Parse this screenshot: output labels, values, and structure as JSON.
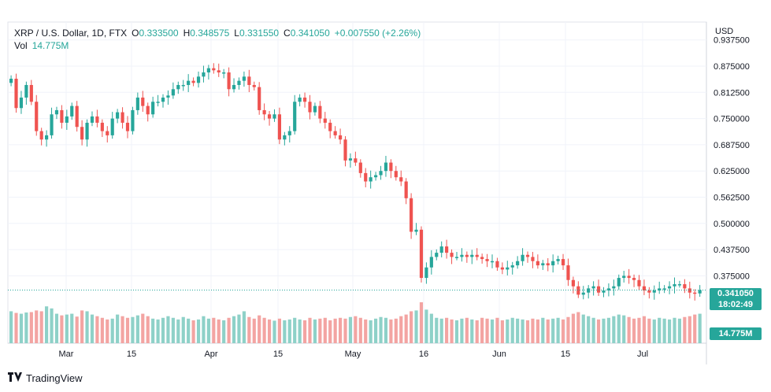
{
  "legend": {
    "symbol": "XRP / U.S. Dollar, 1D, FTX",
    "open_label": "O",
    "open": "0.333500",
    "high_label": "H",
    "high": "0.348575",
    "low_label": "L",
    "low": "0.331550",
    "close_label": "C",
    "close": "0.341050",
    "change": "+0.007550 (+2.26%)",
    "vol_label": "Vol",
    "vol": "14.775M"
  },
  "price_axis": {
    "currency": "USD",
    "ticks": [
      "0.937500",
      "0.875000",
      "0.812500",
      "0.750000",
      "0.687500",
      "0.625000",
      "0.562500",
      "0.500000",
      "0.437500",
      "0.375000"
    ],
    "last_price": "0.341050",
    "countdown": "18:02:49",
    "volume_tag": "14.775M"
  },
  "time_axis": {
    "labels": [
      "Mar",
      "15",
      "Apr",
      "15",
      "May",
      "16",
      "Jun",
      "15",
      "Jul"
    ]
  },
  "brand": {
    "name": "TradingView"
  },
  "colors": {
    "up": "#26a69a",
    "down": "#ef5350",
    "up_vol": "#8ed1c8",
    "down_vol": "#f3a4a2",
    "grid": "#f0f3fa"
  },
  "chart_data": {
    "type": "candlestick",
    "title": "XRP / U.S. Dollar, 1D, FTX",
    "ylabel": "USD",
    "ylim": [
      0.32,
      0.94
    ],
    "grid": true,
    "x_labels": [
      "Mar",
      "15",
      "Apr",
      "15",
      "May",
      "16",
      "Jun",
      "15",
      "Jul"
    ],
    "closes": [
      0.845,
      0.775,
      0.8,
      0.83,
      0.79,
      0.72,
      0.7,
      0.71,
      0.76,
      0.77,
      0.74,
      0.755,
      0.78,
      0.73,
      0.7,
      0.74,
      0.755,
      0.74,
      0.72,
      0.71,
      0.75,
      0.765,
      0.74,
      0.72,
      0.77,
      0.8,
      0.78,
      0.76,
      0.79,
      0.79,
      0.8,
      0.805,
      0.82,
      0.83,
      0.83,
      0.84,
      0.835,
      0.85,
      0.86,
      0.87,
      0.865,
      0.86,
      0.86,
      0.82,
      0.83,
      0.84,
      0.85,
      0.83,
      0.825,
      0.77,
      0.76,
      0.75,
      0.76,
      0.7,
      0.71,
      0.72,
      0.79,
      0.8,
      0.79,
      0.765,
      0.78,
      0.75,
      0.74,
      0.72,
      0.71,
      0.7,
      0.65,
      0.655,
      0.645,
      0.62,
      0.6,
      0.61,
      0.615,
      0.625,
      0.645,
      0.625,
      0.61,
      0.6,
      0.56,
      0.48,
      0.485,
      0.37,
      0.395,
      0.42,
      0.43,
      0.445,
      0.43,
      0.42,
      0.42,
      0.425,
      0.42,
      0.425,
      0.42,
      0.415,
      0.41,
      0.41,
      0.395,
      0.39,
      0.395,
      0.4,
      0.41,
      0.425,
      0.42,
      0.41,
      0.4,
      0.405,
      0.4,
      0.41,
      0.415,
      0.4,
      0.365,
      0.35,
      0.33,
      0.335,
      0.345,
      0.35,
      0.335,
      0.34,
      0.345,
      0.35,
      0.37,
      0.375,
      0.37,
      0.365,
      0.35,
      0.34,
      0.335,
      0.34,
      0.345,
      0.345,
      0.35,
      0.355,
      0.355,
      0.345,
      0.335,
      0.333,
      0.341
    ],
    "volumes": [
      0.78,
      0.74,
      0.72,
      0.75,
      0.76,
      0.8,
      0.78,
      0.9,
      0.85,
      0.72,
      0.68,
      0.7,
      0.72,
      0.65,
      0.8,
      0.78,
      0.7,
      0.66,
      0.62,
      0.58,
      0.6,
      0.7,
      0.66,
      0.62,
      0.64,
      0.68,
      0.72,
      0.66,
      0.6,
      0.58,
      0.62,
      0.66,
      0.62,
      0.58,
      0.64,
      0.6,
      0.56,
      0.58,
      0.66,
      0.6,
      0.62,
      0.58,
      0.56,
      0.62,
      0.66,
      0.7,
      0.78,
      0.64,
      0.6,
      0.68,
      0.62,
      0.58,
      0.55,
      0.6,
      0.56,
      0.58,
      0.62,
      0.58,
      0.56,
      0.62,
      0.58,
      0.6,
      0.62,
      0.56,
      0.6,
      0.62,
      0.6,
      0.64,
      0.66,
      0.62,
      0.58,
      0.56,
      0.6,
      0.64,
      0.62,
      0.58,
      0.6,
      0.66,
      0.7,
      0.78,
      0.8,
      1.0,
      0.82,
      0.72,
      0.62,
      0.6,
      0.62,
      0.58,
      0.56,
      0.6,
      0.62,
      0.58,
      0.56,
      0.62,
      0.6,
      0.58,
      0.62,
      0.56,
      0.58,
      0.62,
      0.6,
      0.58,
      0.56,
      0.6,
      0.58,
      0.62,
      0.58,
      0.6,
      0.62,
      0.58,
      0.64,
      0.72,
      0.76,
      0.7,
      0.66,
      0.62,
      0.58,
      0.6,
      0.62,
      0.66,
      0.7,
      0.68,
      0.64,
      0.6,
      0.62,
      0.66,
      0.6,
      0.58,
      0.62,
      0.6,
      0.58,
      0.62,
      0.6,
      0.64,
      0.66,
      0.7,
      0.72
    ]
  }
}
